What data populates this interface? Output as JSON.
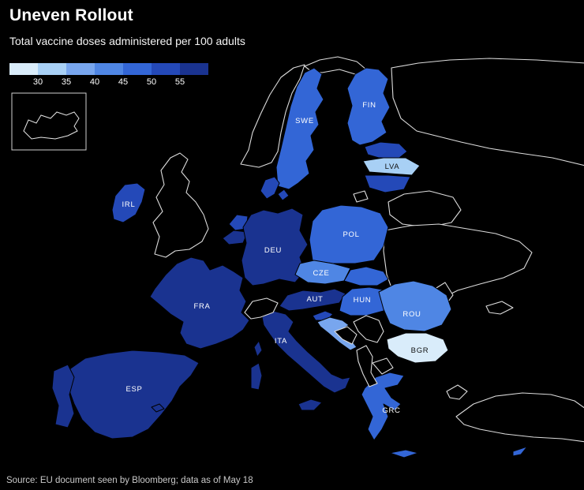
{
  "header": {
    "title": "Uneven Rollout",
    "subtitle": "Total vaccine doses administered per 100 adults"
  },
  "legend": {
    "tick_labels": [
      "30",
      "35",
      "40",
      "45",
      "50",
      "55"
    ]
  },
  "source": {
    "text": "Source: EU document seen by Bloomberg; data as of May 18"
  },
  "chart_data": {
    "type": "choropleth",
    "title": "Uneven Rollout",
    "subtitle": "Total vaccine doses administered per 100 adults",
    "unit": "doses per 100 adults",
    "legend": {
      "thresholds": [
        30,
        35,
        40,
        45,
        50,
        55
      ],
      "colors": [
        "#d9ecfa",
        "#a8d0f5",
        "#78a6ee",
        "#4f86e4",
        "#3366d6",
        "#2449b8",
        "#1a3390"
      ]
    },
    "no_data_color": "#000000",
    "non_eu_border_color": "#dcdcdc",
    "eu_border_color": "#000000",
    "countries": [
      {
        "code": "FIN",
        "name": "Finland",
        "value": 47,
        "color": "#3366d6",
        "labeled": true,
        "label_color": "#ffffff"
      },
      {
        "code": "SWE",
        "name": "Sweden",
        "value": 48,
        "color": "#3366d6",
        "labeled": true,
        "label_color": "#ffffff"
      },
      {
        "code": "EST",
        "name": "Estonia",
        "value": 51,
        "color": "#2449b8",
        "labeled": false
      },
      {
        "code": "LVA",
        "name": "Latvia",
        "value": 33,
        "color": "#a8d0f5",
        "labeled": true,
        "label_color": "#111111"
      },
      {
        "code": "LTU",
        "name": "Lithuania",
        "value": 50,
        "color": "#2449b8",
        "labeled": false
      },
      {
        "code": "DNK",
        "name": "Denmark",
        "value": 53,
        "color": "#2449b8",
        "labeled": false
      },
      {
        "code": "IRL",
        "name": "Ireland",
        "value": 51,
        "color": "#2449b8",
        "labeled": true,
        "label_color": "#ffffff"
      },
      {
        "code": "NLD",
        "name": "Netherlands",
        "value": 52,
        "color": "#2449b8",
        "labeled": false
      },
      {
        "code": "BEL",
        "name": "Belgium",
        "value": 55,
        "color": "#1a3390",
        "labeled": false
      },
      {
        "code": "DEU",
        "name": "Germany",
        "value": 56,
        "color": "#1a3390",
        "labeled": true,
        "label_color": "#ffffff"
      },
      {
        "code": "POL",
        "name": "Poland",
        "value": 47,
        "color": "#3366d6",
        "labeled": true,
        "label_color": "#ffffff"
      },
      {
        "code": "CZE",
        "name": "Czech Republic",
        "value": 44,
        "color": "#4f86e4",
        "labeled": true,
        "label_color": "#ffffff"
      },
      {
        "code": "SVK",
        "name": "Slovakia",
        "value": 47,
        "color": "#3366d6",
        "labeled": false
      },
      {
        "code": "AUT",
        "name": "Austria",
        "value": 56,
        "color": "#1a3390",
        "labeled": true,
        "label_color": "#ffffff"
      },
      {
        "code": "HUN",
        "name": "Hungary",
        "value": 46,
        "color": "#3366d6",
        "labeled": true,
        "label_color": "#ffffff"
      },
      {
        "code": "FRA",
        "name": "France",
        "value": 56,
        "color": "#1a3390",
        "labeled": true,
        "label_color": "#ffffff"
      },
      {
        "code": "ESP",
        "name": "Spain",
        "value": 57,
        "color": "#1a3390",
        "labeled": true,
        "label_color": "#ffffff"
      },
      {
        "code": "PRT",
        "name": "Portugal",
        "value": 57,
        "color": "#1a3390",
        "labeled": false
      },
      {
        "code": "ITA",
        "name": "Italy",
        "value": 56,
        "color": "#1a3390",
        "labeled": true,
        "label_color": "#ffffff"
      },
      {
        "code": "SVN",
        "name": "Slovenia",
        "value": 50,
        "color": "#2449b8",
        "labeled": false
      },
      {
        "code": "HRV",
        "name": "Croatia",
        "value": 37,
        "color": "#78a6ee",
        "labeled": false
      },
      {
        "code": "ROU",
        "name": "Romania",
        "value": 41,
        "color": "#4f86e4",
        "labeled": true,
        "label_color": "#ffffff"
      },
      {
        "code": "BGR",
        "name": "Bulgaria",
        "value": 26,
        "color": "#d9ecfa",
        "labeled": true,
        "label_color": "#111111"
      },
      {
        "code": "GRC",
        "name": "Greece",
        "value": 46,
        "color": "#3366d6",
        "labeled": true,
        "label_color": "#ffffff"
      },
      {
        "code": "CYP",
        "name": "Cyprus",
        "value": 46,
        "color": "#3366d6",
        "labeled": false
      }
    ]
  }
}
